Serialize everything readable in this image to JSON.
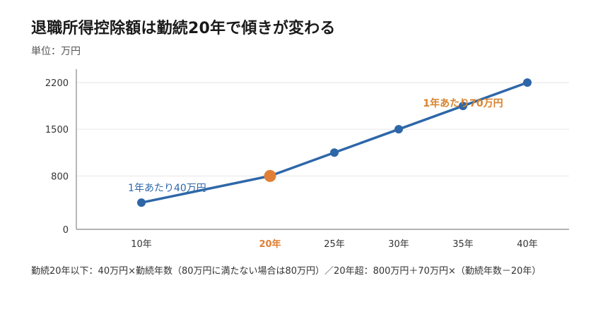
{
  "title": "退職所得控除額は勤続20年で傾きが変わる",
  "subtitle": "単位：万円",
  "footnote": "勤続20年以下：40万円×勤続年数（80万円に満たない場合は80万円）／20年超：800万円＋70万円×（勤続年数－20年）",
  "colors": {
    "line": "#2e67a8",
    "highlight": "#e07f35",
    "axis": "#888888",
    "grid": "#e6e6e6",
    "annotation1": "#2e67a8",
    "annotation2": "#d9822b"
  },
  "chart_data": {
    "type": "line",
    "title": "退職所得控除額は勤続20年で傾きが変わる",
    "ylabel": "単位：万円",
    "xlabel": "",
    "categories": [
      "10年",
      "20年",
      "25年",
      "30年",
      "35年",
      "40年"
    ],
    "x": [
      10,
      20,
      25,
      30,
      35,
      40
    ],
    "values": [
      400,
      800,
      1150,
      1500,
      1850,
      2200
    ],
    "highlight_category": "20年",
    "ylim": [
      0,
      2200
    ],
    "yticks": [
      0,
      800,
      1500,
      2200
    ],
    "grid": true,
    "annotations": [
      {
        "text": "1年あたり40万円",
        "x": 12,
        "y": 570
      },
      {
        "text": "1年あたり70万円",
        "x": 35,
        "y": 1840
      }
    ]
  }
}
